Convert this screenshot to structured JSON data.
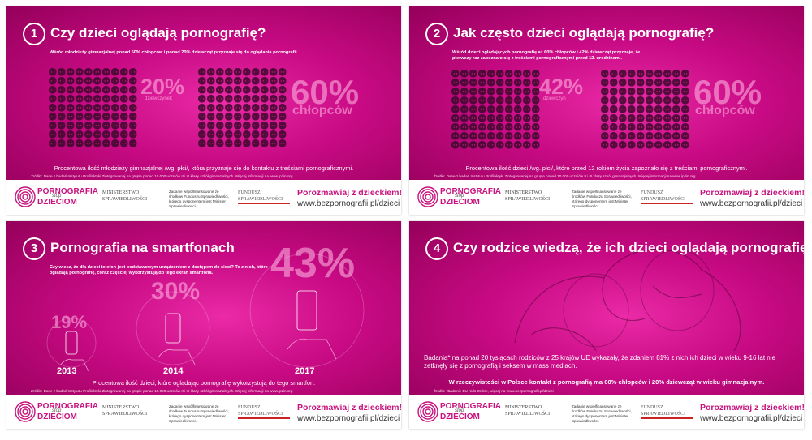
{
  "panels": [
    {
      "number": "1",
      "title": "Czy dzieci oglądają pornografię?",
      "intro": "Wśród młodzieży gimnazjalnej ponad 60% chłopców i ponad 20% dziewcząt przyznaje się do oglądania pornografii.",
      "stats": [
        {
          "value": "20%",
          "label": "dziewczynek"
        },
        {
          "value": "60%",
          "label": "chłopców"
        }
      ],
      "caption": "Procentowa ilość młodzieży gimnazjalnej /wg. płci/, która przyznaje się do kontaktu z treściami pornograficznymi.",
      "source": "Źródło: Dane z badań Instytutu Profilaktyki Zintegrowanej na grupie ponad 10.000 uczniów II i III klasy szkół gimnazjalnych. Więcej informacji na www.ipzin.org"
    },
    {
      "number": "2",
      "title": "Jak często dzieci oglądają pornografię?",
      "intro": "Wśród dzieci oglądających pornografię aż 60% chłopców i 42% dziewcząt przyznaje, że pierwszy raz zapoznało się z treściami pornograficznymi przed 12. urodzinami.",
      "stats": [
        {
          "value": "42%",
          "label": "dziewczyn"
        },
        {
          "value": "60%",
          "label": "chłopców"
        }
      ],
      "caption": "Procentowa ilość dzieci /wg. płci/, które przed 12 rokiem życia zapoznało się z treściami pornograficznymi.",
      "source": "Źródło: Dane z badań Instytutu Profilaktyki Zintegrowanej na grupie ponad 10.000 uczniów II i III klasy szkół gimnazjalnych. Więcej informacji na www.ipzin.org"
    },
    {
      "number": "3",
      "title": "Pornografia na smartfonach",
      "intro": "Czy wiesz, że dla dzieci telefon jest podstawowym urządzeniem z dostępem do sieci? Te z nich, które oglądają pornografię, coraz częściej wykorzystują do tego ekran smartfona.",
      "stats": [
        {
          "value": "19%",
          "label": "2013"
        },
        {
          "value": "30%",
          "label": "2014"
        },
        {
          "value": "43%",
          "label": "2017"
        }
      ],
      "caption": "Procentowa ilość dzieci, które oglądając pornografię wykorzystują do tego smartfon.",
      "source": "Źródło: Dane z badań Instytutu Profilaktyki Zintegrowanej na grupie ponad 10.000 uczniów II i III klasy szkół gimnazjalnych. Więcej informacji na www.ipzin.org"
    },
    {
      "number": "4",
      "title": "Czy rodzice wiedzą, że ich dzieci oglądają pornografię?",
      "intro": "Badania* na ponad 20 tysiącach rodziców z 25 krajów UE wykazały, że zdaniem 81% z nich ich dzieci w wieku 9-16 lat nie zetknęły się z pornografią i seksem w mass mediach.",
      "stats": [],
      "caption": "W rzeczywistości w Polsce kontakt z pornografią ma 60% chłopców i 20% dziewcząt w wieku gimnazjalnym.",
      "source": "Źródło: *Badanie EU Kids Online, więcej na www.bezpornografii.pl/dzieci"
    }
  ],
  "footer": {
    "logo_top": "PORNOGRAFIA",
    "logo_mid": "stop",
    "logo_bottom": "DZIECIOM",
    "ministry": "MINISTERSTWO SPRAWIEDLIWOŚCI",
    "funding": "Zadanie współfinansowane ze środków Funduszu Sprawiedliwości, którego dysponentem jest Minister Sprawiedliwości.",
    "fund": "FUNDUSZ SPRAWIEDLIWOŚCI",
    "slogan": "Porozmawiaj z dzieckiem!",
    "url": "www.bezpornografii.pl/dzieci"
  }
}
